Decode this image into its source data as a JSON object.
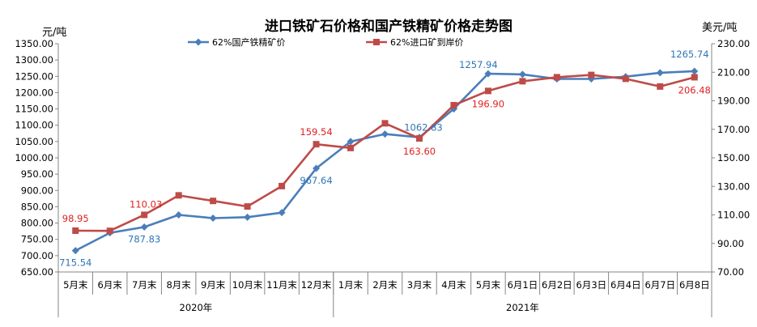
{
  "chart_data": {
    "type": "line",
    "title": "进口铁矿石价格和国产铁精矿价格走势图",
    "y_left_unit": "元/吨",
    "y_right_unit": "美元/吨",
    "y_left_ticks": [
      "650.00",
      "700.00",
      "750.00",
      "800.00",
      "850.00",
      "900.00",
      "950.00",
      "1000.00",
      "1050.00",
      "1100.00",
      "1150.00",
      "1200.00",
      "1250.00",
      "1300.00",
      "1350.00"
    ],
    "y_right_ticks": [
      "70.00",
      "90.00",
      "110.00",
      "130.00",
      "150.00",
      "170.00",
      "190.00",
      "210.00",
      "230.00"
    ],
    "ylim_left": [
      650,
      1350
    ],
    "ylim_right": [
      70,
      230
    ],
    "categories": [
      "5月末",
      "6月末",
      "7月末",
      "8月末",
      "9月末",
      "10月末",
      "11月末",
      "12月末",
      "1月末",
      "2月末",
      "3月末",
      "4月末",
      "5月末",
      "6月1日",
      "6月2日",
      "6月3日",
      "6月4日",
      "6月7日",
      "6月8日"
    ],
    "year_groups": [
      {
        "label": "2020年",
        "start": 0,
        "end": 7
      },
      {
        "label": "2021年",
        "start": 8,
        "end": 18
      }
    ],
    "legend_position": "top",
    "series": [
      {
        "name": "62%国产铁精矿价",
        "axis": "left",
        "color": "#4a7ebb",
        "marker": "diamond",
        "values": [
          715.54,
          770,
          787.83,
          825,
          815,
          818,
          832,
          967.64,
          1050,
          1073,
          1062.83,
          1150,
          1257.94,
          1256,
          1242,
          1242,
          1249,
          1261,
          1265.74
        ],
        "labels": {
          "0": "715.54",
          "2": "787.83",
          "7": "967.64",
          "10": "1062.83",
          "12": "1257.94",
          "18": "1265.74"
        }
      },
      {
        "name": "62%进口矿到岸价",
        "axis": "right",
        "color": "#be4b48",
        "marker": "square",
        "values": [
          98.95,
          98.8,
          110.03,
          123.7,
          119.8,
          115.9,
          130.2,
          159.54,
          156.9,
          174.2,
          163.6,
          186.9,
          196.9,
          203.7,
          206.5,
          208.1,
          205.4,
          200,
          206.48
        ],
        "labels": {
          "0": "98.95",
          "2": "110.03",
          "7": "159.54",
          "10": "163.60",
          "12": "196.90",
          "18": "206.48"
        }
      }
    ]
  }
}
